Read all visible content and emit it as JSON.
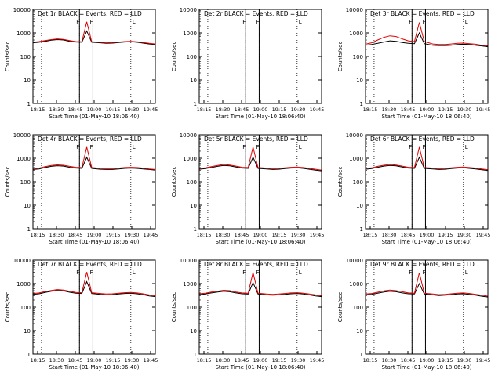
{
  "figure": {
    "ylabel": "Counts/sec",
    "xlabel": "Start Time (01-May-10 18:06:40)",
    "x_tick_labels": [
      "18:15",
      "18:30",
      "18:45",
      "19:00",
      "19:15",
      "19:30",
      "19:45"
    ],
    "y_tick_labels": [
      "1",
      "10",
      "100",
      "1000",
      "10000"
    ],
    "legend_text": "BLACK = Events, RED = LLD",
    "attenuator_markers": [
      "F",
      "F",
      "L"
    ],
    "colors": {
      "events": "#000000",
      "lld": "#e00000",
      "axes": "#000000",
      "background": "#ffffff"
    }
  },
  "chart_data": [
    {
      "type": "line",
      "title": "Det 1r",
      "legend": "BLACK = Events, RED = LLD",
      "x_unit": "minutes after 18:06:40 (on a 01-May-10 time axis)",
      "y_scale": "log",
      "ylim": [
        1,
        10000
      ],
      "xlim": [
        0,
        100
      ],
      "vertical_lines": [
        38,
        49
      ],
      "dotted_lines": [
        7,
        38,
        49,
        80
      ],
      "markers": [
        {
          "label": "F",
          "x": 49
        },
        {
          "label": "L",
          "x": 80
        }
      ],
      "series": [
        {
          "name": "Events",
          "color": "#000000",
          "x": [
            0,
            5,
            10,
            15,
            20,
            25,
            30,
            35,
            40,
            44,
            48,
            55,
            60,
            65,
            70,
            75,
            80,
            85,
            90,
            95,
            100
          ],
          "y": [
            380,
            400,
            440,
            490,
            520,
            500,
            440,
            410,
            400,
            1200,
            400,
            380,
            360,
            370,
            390,
            410,
            420,
            400,
            370,
            340,
            320
          ]
        },
        {
          "name": "LLD",
          "color": "#e00000",
          "x": [
            0,
            5,
            10,
            15,
            20,
            25,
            30,
            35,
            40,
            44,
            48,
            55,
            60,
            65,
            70,
            75,
            80,
            85,
            90,
            95,
            100
          ],
          "y": [
            400,
            430,
            470,
            520,
            560,
            530,
            470,
            430,
            420,
            3000,
            420,
            400,
            380,
            390,
            410,
            430,
            440,
            420,
            390,
            360,
            340
          ]
        }
      ]
    },
    {
      "type": "line",
      "title": "Det 2r",
      "legend": "BLACK = Events, RED = LLD",
      "y_scale": "log",
      "ylim": [
        1,
        10000
      ],
      "xlim": [
        0,
        100
      ],
      "vertical_lines": [
        38,
        49
      ],
      "dotted_lines": [
        7,
        38,
        49,
        80
      ],
      "markers": [
        {
          "label": "F",
          "x": 49
        },
        {
          "label": "L",
          "x": 80
        }
      ],
      "series": [
        {
          "name": "Events",
          "color": "#000000",
          "x": [],
          "y": []
        },
        {
          "name": "LLD",
          "color": "#e00000",
          "x": [],
          "y": []
        }
      ]
    },
    {
      "type": "line",
      "title": "Det 3r",
      "legend": "BLACK = Events, RED = LLD",
      "y_scale": "log",
      "ylim": [
        1,
        10000
      ],
      "xlim": [
        0,
        100
      ],
      "vertical_lines": [
        38,
        49
      ],
      "dotted_lines": [
        7,
        38,
        49,
        80
      ],
      "markers": [
        {
          "label": "F",
          "x": 49
        },
        {
          "label": "L",
          "x": 80
        }
      ],
      "series": [
        {
          "name": "Events",
          "color": "#000000",
          "x": [
            0,
            5,
            10,
            15,
            20,
            25,
            30,
            35,
            40,
            44,
            48,
            55,
            60,
            65,
            70,
            75,
            80,
            85,
            90,
            95,
            100
          ],
          "y": [
            300,
            320,
            360,
            410,
            460,
            440,
            390,
            360,
            350,
            1000,
            350,
            300,
            290,
            290,
            300,
            320,
            330,
            320,
            300,
            280,
            260
          ]
        },
        {
          "name": "LLD",
          "color": "#e00000",
          "x": [
            0,
            5,
            10,
            15,
            20,
            25,
            30,
            35,
            40,
            44,
            48,
            55,
            60,
            65,
            70,
            75,
            80,
            85,
            90,
            95,
            100
          ],
          "y": [
            330,
            380,
            500,
            650,
            750,
            700,
            560,
            460,
            430,
            2800,
            430,
            340,
            320,
            320,
            340,
            360,
            370,
            350,
            330,
            300,
            280
          ]
        }
      ]
    },
    {
      "type": "line",
      "title": "Det 4r",
      "legend": "BLACK = Events, RED = LLD",
      "y_scale": "log",
      "ylim": [
        1,
        10000
      ],
      "xlim": [
        0,
        100
      ],
      "vertical_lines": [
        38,
        49
      ],
      "dotted_lines": [
        7,
        38,
        49,
        80
      ],
      "markers": [
        {
          "label": "F",
          "x": 49
        },
        {
          "label": "L",
          "x": 80
        }
      ],
      "series": [
        {
          "name": "Events",
          "color": "#000000",
          "x": [
            0,
            5,
            10,
            15,
            20,
            25,
            30,
            35,
            40,
            44,
            48,
            55,
            60,
            65,
            70,
            75,
            80,
            85,
            90,
            95,
            100
          ],
          "y": [
            330,
            350,
            400,
            450,
            480,
            460,
            410,
            380,
            370,
            1100,
            370,
            340,
            330,
            330,
            350,
            370,
            380,
            370,
            350,
            330,
            310
          ]
        },
        {
          "name": "LLD",
          "color": "#e00000",
          "x": [
            0,
            5,
            10,
            15,
            20,
            25,
            30,
            35,
            40,
            44,
            48,
            55,
            60,
            65,
            70,
            75,
            80,
            85,
            90,
            95,
            100
          ],
          "y": [
            360,
            380,
            440,
            490,
            520,
            500,
            450,
            410,
            400,
            3000,
            400,
            370,
            360,
            360,
            380,
            400,
            410,
            400,
            380,
            350,
            330
          ]
        }
      ]
    },
    {
      "type": "line",
      "title": "Det 5r",
      "legend": "BLACK = Events, RED = LLD",
      "y_scale": "log",
      "ylim": [
        1,
        10000
      ],
      "xlim": [
        0,
        100
      ],
      "vertical_lines": [
        38,
        49
      ],
      "dotted_lines": [
        7,
        38,
        49,
        80
      ],
      "markers": [
        {
          "label": "F",
          "x": 49
        },
        {
          "label": "L",
          "x": 80
        }
      ],
      "series": [
        {
          "name": "Events",
          "color": "#000000",
          "x": [
            0,
            5,
            10,
            15,
            20,
            25,
            30,
            35,
            40,
            44,
            48,
            55,
            60,
            65,
            70,
            75,
            80,
            85,
            90,
            95,
            100
          ],
          "y": [
            340,
            360,
            400,
            450,
            490,
            470,
            420,
            380,
            370,
            1100,
            370,
            350,
            330,
            340,
            360,
            380,
            390,
            370,
            340,
            310,
            290
          ]
        },
        {
          "name": "LLD",
          "color": "#e00000",
          "x": [
            0,
            5,
            10,
            15,
            20,
            25,
            30,
            35,
            40,
            44,
            48,
            55,
            60,
            65,
            70,
            75,
            80,
            85,
            90,
            95,
            100
          ],
          "y": [
            370,
            390,
            440,
            490,
            540,
            510,
            460,
            410,
            400,
            3000,
            400,
            380,
            360,
            370,
            390,
            410,
            420,
            400,
            370,
            340,
            310
          ]
        }
      ]
    },
    {
      "type": "line",
      "title": "Det 6r",
      "legend": "BLACK = Events, RED = LLD",
      "y_scale": "log",
      "ylim": [
        1,
        10000
      ],
      "xlim": [
        0,
        100
      ],
      "vertical_lines": [
        38,
        49
      ],
      "dotted_lines": [
        7,
        38,
        49,
        80
      ],
      "markers": [
        {
          "label": "F",
          "x": 49
        },
        {
          "label": "L",
          "x": 80
        }
      ],
      "series": [
        {
          "name": "Events",
          "color": "#000000",
          "x": [
            0,
            5,
            10,
            15,
            20,
            25,
            30,
            35,
            40,
            44,
            48,
            55,
            60,
            65,
            70,
            75,
            80,
            85,
            90,
            95,
            100
          ],
          "y": [
            340,
            360,
            410,
            460,
            490,
            470,
            420,
            380,
            370,
            1100,
            370,
            350,
            330,
            340,
            360,
            380,
            390,
            370,
            350,
            320,
            300
          ]
        },
        {
          "name": "LLD",
          "color": "#e00000",
          "x": [
            0,
            5,
            10,
            15,
            20,
            25,
            30,
            35,
            40,
            44,
            48,
            55,
            60,
            65,
            70,
            75,
            80,
            85,
            90,
            95,
            100
          ],
          "y": [
            370,
            390,
            450,
            500,
            540,
            510,
            460,
            410,
            400,
            3000,
            400,
            380,
            360,
            370,
            390,
            410,
            420,
            400,
            380,
            350,
            320
          ]
        }
      ]
    },
    {
      "type": "line",
      "title": "Det 7r",
      "legend": "BLACK = Events, RED = LLD",
      "y_scale": "log",
      "ylim": [
        1,
        10000
      ],
      "xlim": [
        0,
        100
      ],
      "vertical_lines": [
        38,
        49
      ],
      "dotted_lines": [
        7,
        38,
        49,
        80
      ],
      "markers": [
        {
          "label": "F",
          "x": 49
        },
        {
          "label": "L",
          "x": 80
        }
      ],
      "series": [
        {
          "name": "Events",
          "color": "#000000",
          "x": [
            0,
            5,
            10,
            15,
            20,
            25,
            30,
            35,
            40,
            44,
            48,
            55,
            60,
            65,
            70,
            75,
            80,
            85,
            90,
            95,
            100
          ],
          "y": [
            350,
            370,
            420,
            470,
            510,
            490,
            430,
            390,
            380,
            1200,
            380,
            350,
            330,
            340,
            360,
            380,
            390,
            370,
            340,
            300,
            280
          ]
        },
        {
          "name": "LLD",
          "color": "#e00000",
          "x": [
            0,
            5,
            10,
            15,
            20,
            25,
            30,
            35,
            40,
            44,
            48,
            55,
            60,
            65,
            70,
            75,
            80,
            85,
            90,
            95,
            100
          ],
          "y": [
            380,
            400,
            460,
            510,
            560,
            530,
            470,
            420,
            410,
            3100,
            410,
            380,
            360,
            370,
            390,
            410,
            420,
            400,
            370,
            330,
            300
          ]
        }
      ]
    },
    {
      "type": "line",
      "title": "Det 8r",
      "legend": "BLACK = Events, RED = LLD",
      "y_scale": "log",
      "ylim": [
        1,
        10000
      ],
      "xlim": [
        0,
        100
      ],
      "vertical_lines": [
        38,
        49
      ],
      "dotted_lines": [
        7,
        38,
        49,
        80
      ],
      "markers": [
        {
          "label": "F",
          "x": 49
        },
        {
          "label": "L",
          "x": 80
        }
      ],
      "series": [
        {
          "name": "Events",
          "color": "#000000",
          "x": [
            0,
            5,
            10,
            15,
            20,
            25,
            30,
            35,
            40,
            44,
            48,
            55,
            60,
            65,
            70,
            75,
            80,
            85,
            90,
            95,
            100
          ],
          "y": [
            340,
            360,
            400,
            440,
            470,
            450,
            400,
            370,
            360,
            1100,
            360,
            330,
            320,
            330,
            350,
            370,
            380,
            360,
            330,
            300,
            280
          ]
        },
        {
          "name": "LLD",
          "color": "#e00000",
          "x": [
            0,
            5,
            10,
            15,
            20,
            25,
            30,
            35,
            40,
            44,
            48,
            55,
            60,
            65,
            70,
            75,
            80,
            85,
            90,
            95,
            100
          ],
          "y": [
            370,
            390,
            440,
            480,
            520,
            500,
            440,
            400,
            390,
            3000,
            390,
            360,
            350,
            360,
            380,
            400,
            410,
            390,
            360,
            330,
            300
          ]
        }
      ]
    },
    {
      "type": "line",
      "title": "Det 9r",
      "legend": "BLACK = Events, RED = LLD",
      "y_scale": "log",
      "ylim": [
        1,
        10000
      ],
      "xlim": [
        0,
        100
      ],
      "vertical_lines": [
        38,
        49
      ],
      "dotted_lines": [
        7,
        38,
        49,
        80
      ],
      "markers": [
        {
          "label": "F",
          "x": 49
        },
        {
          "label": "L",
          "x": 80
        }
      ],
      "series": [
        {
          "name": "Events",
          "color": "#000000",
          "x": [
            0,
            5,
            10,
            15,
            20,
            25,
            30,
            35,
            40,
            44,
            48,
            55,
            60,
            65,
            70,
            75,
            80,
            85,
            90,
            95,
            100
          ],
          "y": [
            330,
            350,
            390,
            440,
            470,
            450,
            400,
            370,
            360,
            1000,
            360,
            330,
            310,
            320,
            340,
            360,
            370,
            350,
            320,
            290,
            270
          ]
        },
        {
          "name": "LLD",
          "color": "#e00000",
          "x": [
            0,
            5,
            10,
            15,
            20,
            25,
            30,
            35,
            40,
            44,
            48,
            55,
            60,
            65,
            70,
            75,
            80,
            85,
            90,
            95,
            100
          ],
          "y": [
            360,
            380,
            430,
            490,
            530,
            500,
            450,
            400,
            390,
            2900,
            390,
            360,
            340,
            350,
            370,
            390,
            400,
            380,
            350,
            320,
            290
          ]
        }
      ]
    }
  ]
}
